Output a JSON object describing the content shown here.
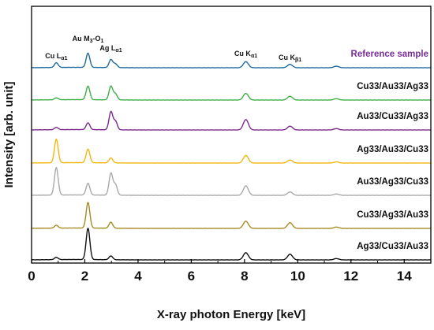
{
  "chart_data": {
    "type": "line",
    "title": "",
    "xlabel": "X-ray photon Energy [keV]",
    "ylabel": "Intensity [arb. unit]",
    "xlim": [
      0,
      15
    ],
    "x_ticks": [
      0,
      2,
      4,
      6,
      8,
      10,
      12,
      14
    ],
    "y_ticks": [],
    "grid": false,
    "legend": "labels to the right of each offset trace",
    "peak_annotations": [
      {
        "label": "Cu L",
        "sub": "α1",
        "energy": 0.93
      },
      {
        "label": "Au M",
        "sub": "3",
        "label_mid": "-O",
        "sub2": "1",
        "energy": 2.12
      },
      {
        "label": "Ag L",
        "sub": "α1",
        "energy": 2.98
      },
      {
        "label": "Cu K",
        "sub": "α1",
        "energy": 8.05
      },
      {
        "label": "Cu K",
        "sub": "β1",
        "energy": 9.71
      }
    ],
    "series": [
      {
        "name": "Reference sample",
        "color": "#1f6a9e",
        "label_color": "#7a2d9a",
        "peaks": [
          [
            0.93,
            0.25
          ],
          [
            2.12,
            0.75
          ],
          [
            2.98,
            0.42
          ],
          [
            3.15,
            0.2
          ],
          [
            8.05,
            0.32
          ],
          [
            9.71,
            0.18
          ],
          [
            11.45,
            0.08
          ]
        ]
      },
      {
        "name": "Cu33/Au33/Ag33",
        "color": "#3fae45",
        "label_color": "#111111",
        "peaks": [
          [
            0.93,
            0.1
          ],
          [
            2.12,
            0.72
          ],
          [
            2.98,
            0.72
          ],
          [
            3.15,
            0.32
          ],
          [
            8.05,
            0.35
          ],
          [
            9.71,
            0.2
          ],
          [
            11.45,
            0.07
          ]
        ]
      },
      {
        "name": "Au33/Cu33/Ag33",
        "color": "#7b2a8c",
        "label_color": "#111111",
        "peaks": [
          [
            0.93,
            0.12
          ],
          [
            2.12,
            0.36
          ],
          [
            2.98,
            0.95
          ],
          [
            3.15,
            0.45
          ],
          [
            8.05,
            0.55
          ],
          [
            9.71,
            0.2
          ],
          [
            11.45,
            0.07
          ]
        ]
      },
      {
        "name": "Ag33/Au33/Cu33",
        "color": "#f2b70f",
        "label_color": "#111111",
        "peaks": [
          [
            0.93,
            1.25
          ],
          [
            2.12,
            0.72
          ],
          [
            2.98,
            0.26
          ],
          [
            8.05,
            0.4
          ],
          [
            9.71,
            0.16
          ],
          [
            11.45,
            0.06
          ]
        ]
      },
      {
        "name": "Au33/Ag33/Cu33",
        "color": "#a9a9a9",
        "label_color": "#111111",
        "peaks": [
          [
            0.93,
            1.45
          ],
          [
            2.12,
            0.62
          ],
          [
            2.98,
            1.15
          ],
          [
            3.15,
            0.55
          ],
          [
            8.05,
            0.5
          ],
          [
            9.71,
            0.18
          ],
          [
            11.45,
            0.07
          ]
        ]
      },
      {
        "name": "Cu33/Ag33/Au33",
        "color": "#a88a22",
        "label_color": "#111111",
        "peaks": [
          [
            0.93,
            0.15
          ],
          [
            2.12,
            1.35
          ],
          [
            2.98,
            0.32
          ],
          [
            8.05,
            0.38
          ],
          [
            9.71,
            0.3
          ],
          [
            11.45,
            0.07
          ]
        ]
      },
      {
        "name": "Ag33/Cu33/Au33",
        "color": "#111111",
        "label_color": "#111111",
        "peaks": [
          [
            0.93,
            0.12
          ],
          [
            2.12,
            1.65
          ],
          [
            2.98,
            0.2
          ],
          [
            8.05,
            0.38
          ],
          [
            9.71,
            0.3
          ],
          [
            11.45,
            0.07
          ]
        ]
      }
    ]
  }
}
